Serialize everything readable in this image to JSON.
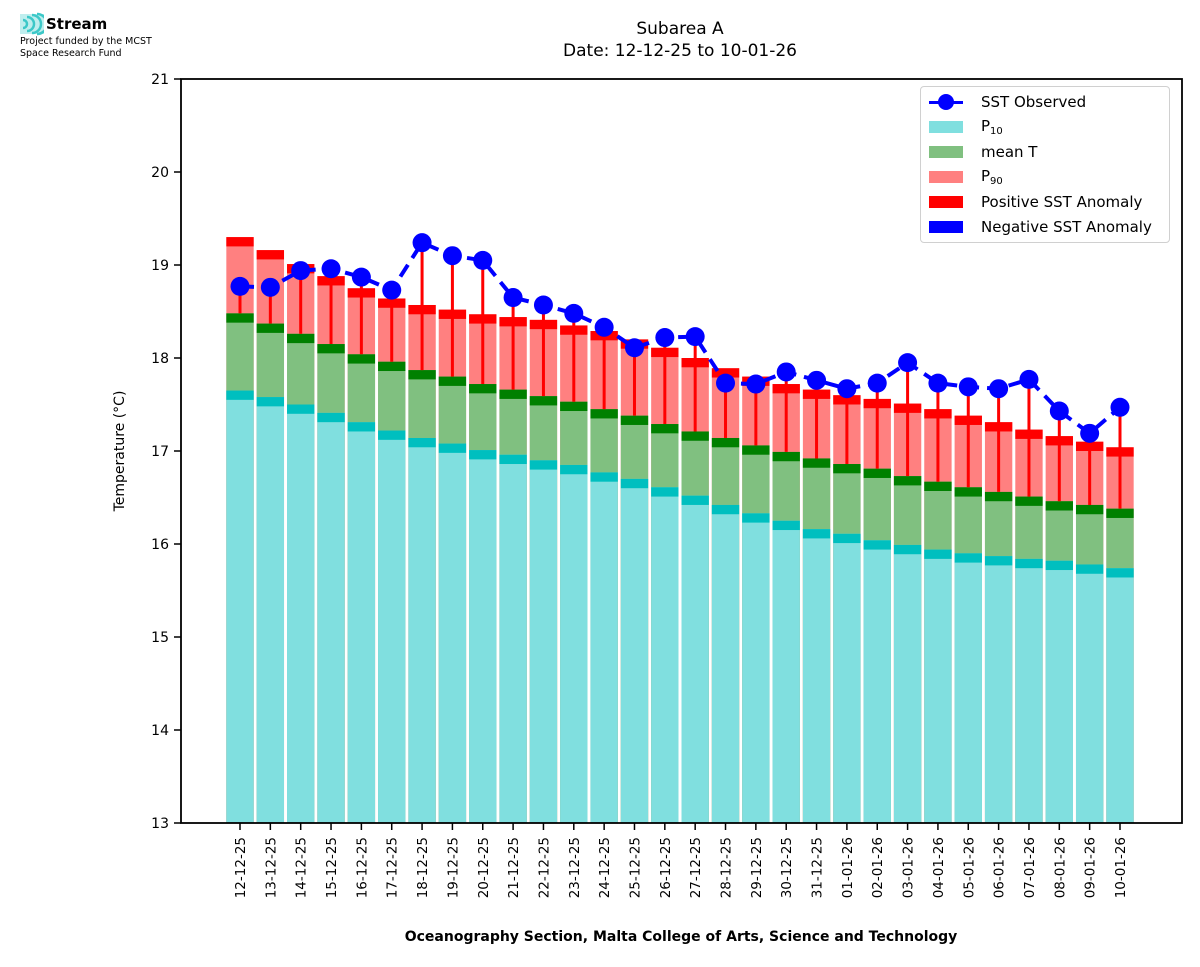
{
  "logo": {
    "icon": "stream-waves-icon",
    "name": "Stream",
    "subtitle_lines": [
      "Project funded by the MCST",
      "Space Research Fund"
    ]
  },
  "chart_data": {
    "type": "bar",
    "title": "Subarea A",
    "subtitle": "Date: 12-12-25 to 10-01-26",
    "xlabel": "Oceanography Section, Malta College of Arts, Science and Technology",
    "ylabel": "Temperature (°C)",
    "ylim": [
      13,
      21
    ],
    "yticks": [
      13,
      14,
      15,
      16,
      17,
      18,
      19,
      20,
      21
    ],
    "grid": false,
    "legend_position": "top-right",
    "cap_thickness_degC": 0.1,
    "categories": [
      "12-12-25",
      "13-12-25",
      "14-12-25",
      "15-12-25",
      "16-12-25",
      "17-12-25",
      "18-12-25",
      "19-12-25",
      "20-12-25",
      "21-12-25",
      "22-12-25",
      "23-12-25",
      "24-12-25",
      "25-12-25",
      "26-12-25",
      "27-12-25",
      "28-12-25",
      "29-12-25",
      "30-12-25",
      "31-12-25",
      "01-01-26",
      "02-01-26",
      "03-01-26",
      "04-01-26",
      "05-01-26",
      "06-01-26",
      "07-01-26",
      "08-01-26",
      "09-01-26",
      "10-01-26"
    ],
    "series": [
      {
        "name": "P10",
        "key": "p10",
        "kind": "stacked-bar-level",
        "color": "#80dfdf",
        "cap_color": "#00bfbf",
        "values": [
          17.65,
          17.58,
          17.5,
          17.41,
          17.31,
          17.22,
          17.14,
          17.08,
          17.01,
          16.96,
          16.9,
          16.85,
          16.77,
          16.7,
          16.61,
          16.52,
          16.42,
          16.33,
          16.25,
          16.16,
          16.11,
          16.04,
          15.99,
          15.94,
          15.9,
          15.87,
          15.84,
          15.82,
          15.78,
          15.74
        ]
      },
      {
        "name": "mean T",
        "key": "mean",
        "kind": "stacked-bar-level",
        "color": "#80c080",
        "cap_color": "#008000",
        "values": [
          18.48,
          18.37,
          18.26,
          18.15,
          18.04,
          17.96,
          17.87,
          17.8,
          17.72,
          17.66,
          17.59,
          17.53,
          17.45,
          17.38,
          17.29,
          17.21,
          17.14,
          17.06,
          16.99,
          16.92,
          16.86,
          16.81,
          16.73,
          16.67,
          16.61,
          16.56,
          16.51,
          16.46,
          16.42,
          16.38
        ]
      },
      {
        "name": "P90",
        "key": "p90",
        "kind": "stacked-bar-level",
        "color": "#ff8080",
        "cap_color": "#ff0000",
        "values": [
          19.3,
          19.16,
          19.01,
          18.88,
          18.75,
          18.64,
          18.57,
          18.52,
          18.47,
          18.44,
          18.41,
          18.35,
          18.29,
          18.2,
          18.11,
          18.0,
          17.89,
          17.8,
          17.72,
          17.66,
          17.6,
          17.56,
          17.51,
          17.45,
          17.38,
          17.31,
          17.23,
          17.16,
          17.1,
          17.04
        ]
      },
      {
        "name": "SST Observed",
        "key": "sst",
        "kind": "line-markers",
        "color": "#0000ff",
        "values": [
          18.77,
          18.76,
          18.94,
          18.96,
          18.87,
          18.73,
          19.24,
          19.1,
          19.05,
          18.65,
          18.57,
          18.48,
          18.33,
          18.11,
          18.22,
          18.23,
          17.73,
          17.72,
          17.85,
          17.76,
          17.67,
          17.73,
          17.95,
          17.73,
          17.69,
          17.67,
          17.77,
          17.43,
          17.19,
          17.47
        ]
      }
    ],
    "anomaly": {
      "positive_color": "#ff0000",
      "negative_color": "#0000ff",
      "reference": "mean T"
    },
    "legend": [
      {
        "label": "SST Observed",
        "type": "line-marker",
        "color": "#0000ff"
      },
      {
        "label": "P",
        "sub": "10",
        "type": "patch",
        "color": "#80dfdf"
      },
      {
        "label": "mean T",
        "type": "patch",
        "color": "#80c080"
      },
      {
        "label": "P",
        "sub": "90",
        "type": "patch",
        "color": "#ff8080"
      },
      {
        "label": "Positive SST Anomaly",
        "type": "patch",
        "color": "#ff0000"
      },
      {
        "label": "Negative SST Anomaly",
        "type": "patch",
        "color": "#0000ff"
      }
    ]
  }
}
